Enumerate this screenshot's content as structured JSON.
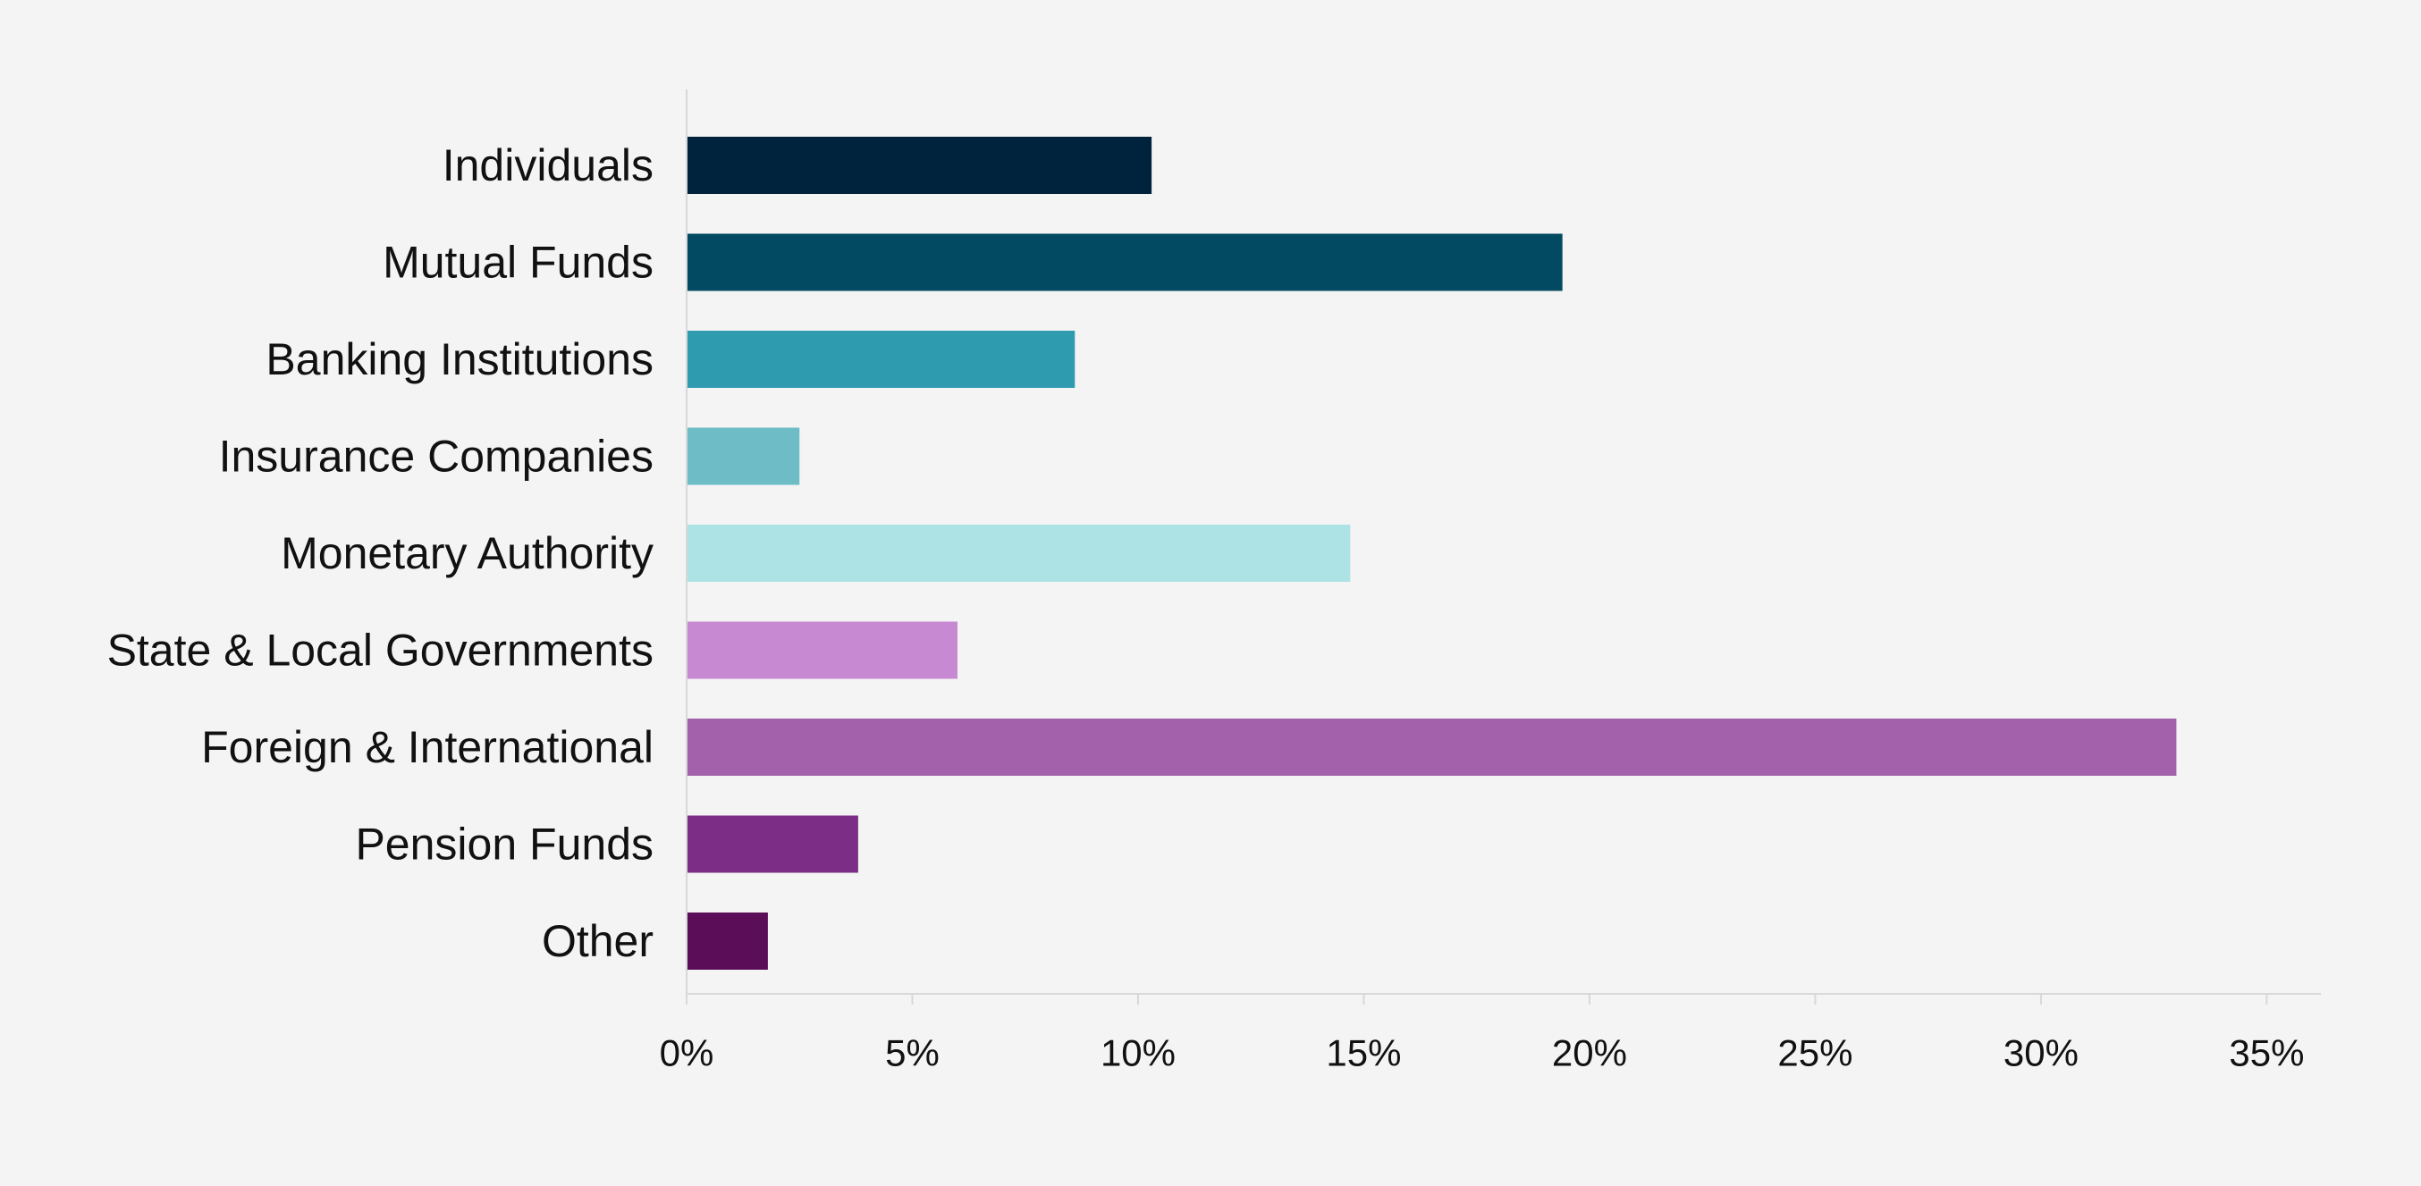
{
  "chart_data": {
    "type": "bar",
    "orientation": "horizontal",
    "categories": [
      "Individuals",
      "Mutual Funds",
      "Banking Institutions",
      "Insurance Companies",
      "Monetary Authority",
      "State & Local Governments",
      "Foreign & International",
      "Pension Funds",
      "Other"
    ],
    "values": [
      10.3,
      19.4,
      8.6,
      2.5,
      14.7,
      6.0,
      33.0,
      3.8,
      1.8
    ],
    "colors": [
      "#00233d",
      "#024a61",
      "#2e9cae",
      "#6dbcc6",
      "#aee3e6",
      "#c78ad2",
      "#a461ab",
      "#7c2e87",
      "#5b0e57"
    ],
    "unit": "%",
    "xlim": [
      0,
      36.2
    ],
    "xticks": [
      0,
      5,
      10,
      15,
      20,
      25,
      30,
      35
    ],
    "xtick_labels": [
      "0%",
      "5%",
      "10%",
      "15%",
      "20%",
      "25%",
      "30%",
      "35%"
    ],
    "title": "",
    "xlabel": "",
    "ylabel": "",
    "grid": false,
    "legend": "none"
  }
}
